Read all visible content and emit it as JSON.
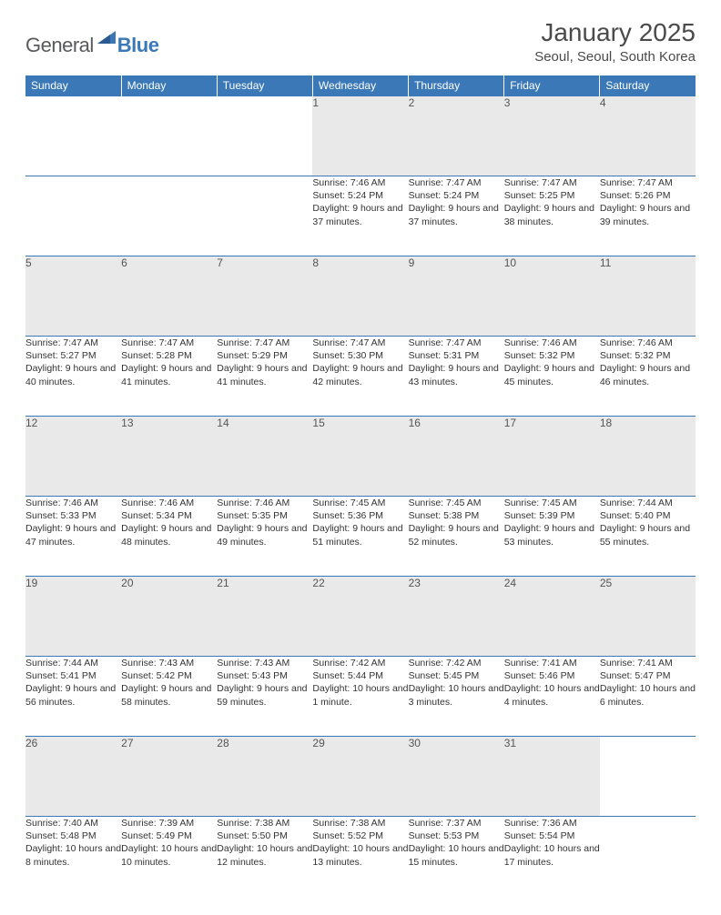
{
  "logo": {
    "text1": "General",
    "text2": "Blue"
  },
  "title": "January 2025",
  "location": "Seoul, Seoul, South Korea",
  "colors": {
    "header_bg": "#3b78b8",
    "header_text": "#ffffff",
    "daynum_bg": "#e9e9e9",
    "daynum_text": "#555555",
    "body_text": "#333333",
    "title_text": "#4a4a4a",
    "row_divider": "#3b78b8"
  },
  "daysOfWeek": [
    "Sunday",
    "Monday",
    "Tuesday",
    "Wednesday",
    "Thursday",
    "Friday",
    "Saturday"
  ],
  "weeks": [
    [
      null,
      null,
      null,
      {
        "n": "1",
        "sr": "7:46 AM",
        "ss": "5:24 PM",
        "dl": "9 hours and 37 minutes."
      },
      {
        "n": "2",
        "sr": "7:47 AM",
        "ss": "5:24 PM",
        "dl": "9 hours and 37 minutes."
      },
      {
        "n": "3",
        "sr": "7:47 AM",
        "ss": "5:25 PM",
        "dl": "9 hours and 38 minutes."
      },
      {
        "n": "4",
        "sr": "7:47 AM",
        "ss": "5:26 PM",
        "dl": "9 hours and 39 minutes."
      }
    ],
    [
      {
        "n": "5",
        "sr": "7:47 AM",
        "ss": "5:27 PM",
        "dl": "9 hours and 40 minutes."
      },
      {
        "n": "6",
        "sr": "7:47 AM",
        "ss": "5:28 PM",
        "dl": "9 hours and 41 minutes."
      },
      {
        "n": "7",
        "sr": "7:47 AM",
        "ss": "5:29 PM",
        "dl": "9 hours and 41 minutes."
      },
      {
        "n": "8",
        "sr": "7:47 AM",
        "ss": "5:30 PM",
        "dl": "9 hours and 42 minutes."
      },
      {
        "n": "9",
        "sr": "7:47 AM",
        "ss": "5:31 PM",
        "dl": "9 hours and 43 minutes."
      },
      {
        "n": "10",
        "sr": "7:46 AM",
        "ss": "5:32 PM",
        "dl": "9 hours and 45 minutes."
      },
      {
        "n": "11",
        "sr": "7:46 AM",
        "ss": "5:32 PM",
        "dl": "9 hours and 46 minutes."
      }
    ],
    [
      {
        "n": "12",
        "sr": "7:46 AM",
        "ss": "5:33 PM",
        "dl": "9 hours and 47 minutes."
      },
      {
        "n": "13",
        "sr": "7:46 AM",
        "ss": "5:34 PM",
        "dl": "9 hours and 48 minutes."
      },
      {
        "n": "14",
        "sr": "7:46 AM",
        "ss": "5:35 PM",
        "dl": "9 hours and 49 minutes."
      },
      {
        "n": "15",
        "sr": "7:45 AM",
        "ss": "5:36 PM",
        "dl": "9 hours and 51 minutes."
      },
      {
        "n": "16",
        "sr": "7:45 AM",
        "ss": "5:38 PM",
        "dl": "9 hours and 52 minutes."
      },
      {
        "n": "17",
        "sr": "7:45 AM",
        "ss": "5:39 PM",
        "dl": "9 hours and 53 minutes."
      },
      {
        "n": "18",
        "sr": "7:44 AM",
        "ss": "5:40 PM",
        "dl": "9 hours and 55 minutes."
      }
    ],
    [
      {
        "n": "19",
        "sr": "7:44 AM",
        "ss": "5:41 PM",
        "dl": "9 hours and 56 minutes."
      },
      {
        "n": "20",
        "sr": "7:43 AM",
        "ss": "5:42 PM",
        "dl": "9 hours and 58 minutes."
      },
      {
        "n": "21",
        "sr": "7:43 AM",
        "ss": "5:43 PM",
        "dl": "9 hours and 59 minutes."
      },
      {
        "n": "22",
        "sr": "7:42 AM",
        "ss": "5:44 PM",
        "dl": "10 hours and 1 minute."
      },
      {
        "n": "23",
        "sr": "7:42 AM",
        "ss": "5:45 PM",
        "dl": "10 hours and 3 minutes."
      },
      {
        "n": "24",
        "sr": "7:41 AM",
        "ss": "5:46 PM",
        "dl": "10 hours and 4 minutes."
      },
      {
        "n": "25",
        "sr": "7:41 AM",
        "ss": "5:47 PM",
        "dl": "10 hours and 6 minutes."
      }
    ],
    [
      {
        "n": "26",
        "sr": "7:40 AM",
        "ss": "5:48 PM",
        "dl": "10 hours and 8 minutes."
      },
      {
        "n": "27",
        "sr": "7:39 AM",
        "ss": "5:49 PM",
        "dl": "10 hours and 10 minutes."
      },
      {
        "n": "28",
        "sr": "7:38 AM",
        "ss": "5:50 PM",
        "dl": "10 hours and 12 minutes."
      },
      {
        "n": "29",
        "sr": "7:38 AM",
        "ss": "5:52 PM",
        "dl": "10 hours and 13 minutes."
      },
      {
        "n": "30",
        "sr": "7:37 AM",
        "ss": "5:53 PM",
        "dl": "10 hours and 15 minutes."
      },
      {
        "n": "31",
        "sr": "7:36 AM",
        "ss": "5:54 PM",
        "dl": "10 hours and 17 minutes."
      },
      null
    ]
  ],
  "labels": {
    "sunrise": "Sunrise:",
    "sunset": "Sunset:",
    "daylight": "Daylight:"
  }
}
